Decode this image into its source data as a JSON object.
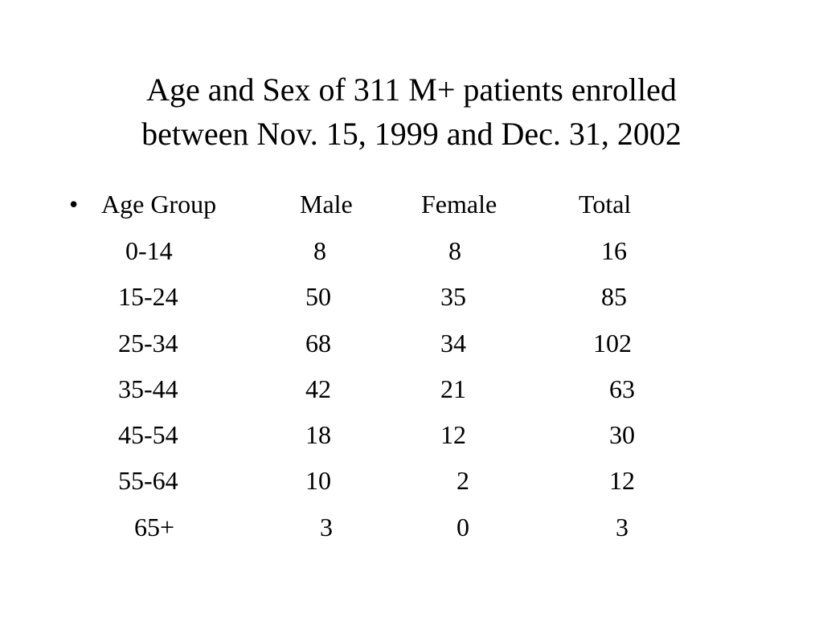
{
  "slide": {
    "title_line1": "Age and Sex of 311 M+ patients enrolled",
    "title_line2": "between Nov. 15, 1999 and Dec. 31, 2002",
    "bullet": "•",
    "table": {
      "headers": [
        "Age Group",
        "Male",
        "Female",
        "Total"
      ],
      "rows": [
        [
          "0-14",
          "8",
          "8",
          "16"
        ],
        [
          "15-24",
          "50",
          "35",
          "85"
        ],
        [
          "25-34",
          "68",
          "34",
          "102"
        ],
        [
          "35-44",
          "42",
          "21",
          "63"
        ],
        [
          "45-54",
          "18",
          "12",
          "30"
        ],
        [
          "55-64",
          "10",
          "2",
          "12"
        ],
        [
          "65+",
          "3",
          "0",
          "3"
        ]
      ]
    }
  }
}
